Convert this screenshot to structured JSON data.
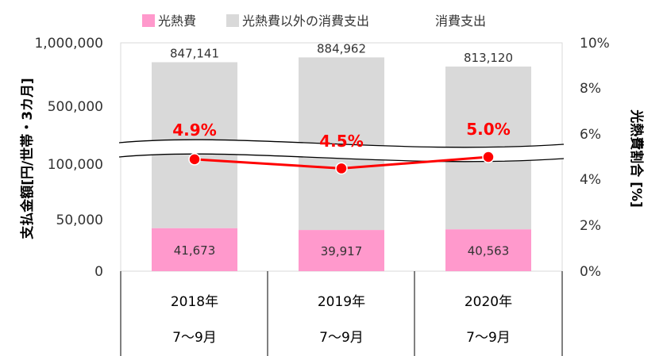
{
  "chart_data": {
    "type": "bar",
    "categories": [
      "2018年",
      "2019年",
      "2020年"
    ],
    "period_label": "7～9月",
    "legend": {
      "placement": "top",
      "items": [
        {
          "key": "utility",
          "label": "光熱費",
          "color": "#ff99cc"
        },
        {
          "key": "other",
          "label": "光熱費以外の消費支出",
          "color": "#d9d9d9"
        },
        {
          "key": "total",
          "label": "消費支出",
          "color": ""
        }
      ]
    },
    "series": [
      {
        "name": "光熱費",
        "key": "utility",
        "values": [
          41673,
          39917,
          40563
        ],
        "labels": [
          "41,673",
          "39,917",
          "40,563"
        ],
        "color": "#ff99cc"
      },
      {
        "name": "消費支出",
        "key": "total",
        "values": [
          847141,
          884962,
          813120
        ],
        "labels": [
          "847,141",
          "884,962",
          "813,120"
        ],
        "color": "#d9d9d9"
      }
    ],
    "ratio": {
      "name": "光熱費割合",
      "values": [
        4.9,
        4.5,
        5.0
      ],
      "labels": [
        "4.9%",
        "4.5%",
        "5.0%"
      ],
      "color": "#ff0000"
    },
    "y_left": {
      "label": "支払金額[円/世帯・3カ月]",
      "ticks": [
        0,
        50000,
        100000,
        500000,
        1000000
      ],
      "tick_labels": [
        "0",
        "50,000",
        "100,000",
        "500,000",
        "1,000,000"
      ],
      "scale": "broken"
    },
    "y_right": {
      "label": "光熱費割合 [%]",
      "range": [
        0,
        10
      ],
      "ticks": [
        0,
        2,
        4,
        6,
        8,
        10
      ],
      "tick_labels": [
        "0%",
        "2%",
        "4%",
        "6%",
        "8%",
        "10%"
      ]
    },
    "grid": false
  }
}
